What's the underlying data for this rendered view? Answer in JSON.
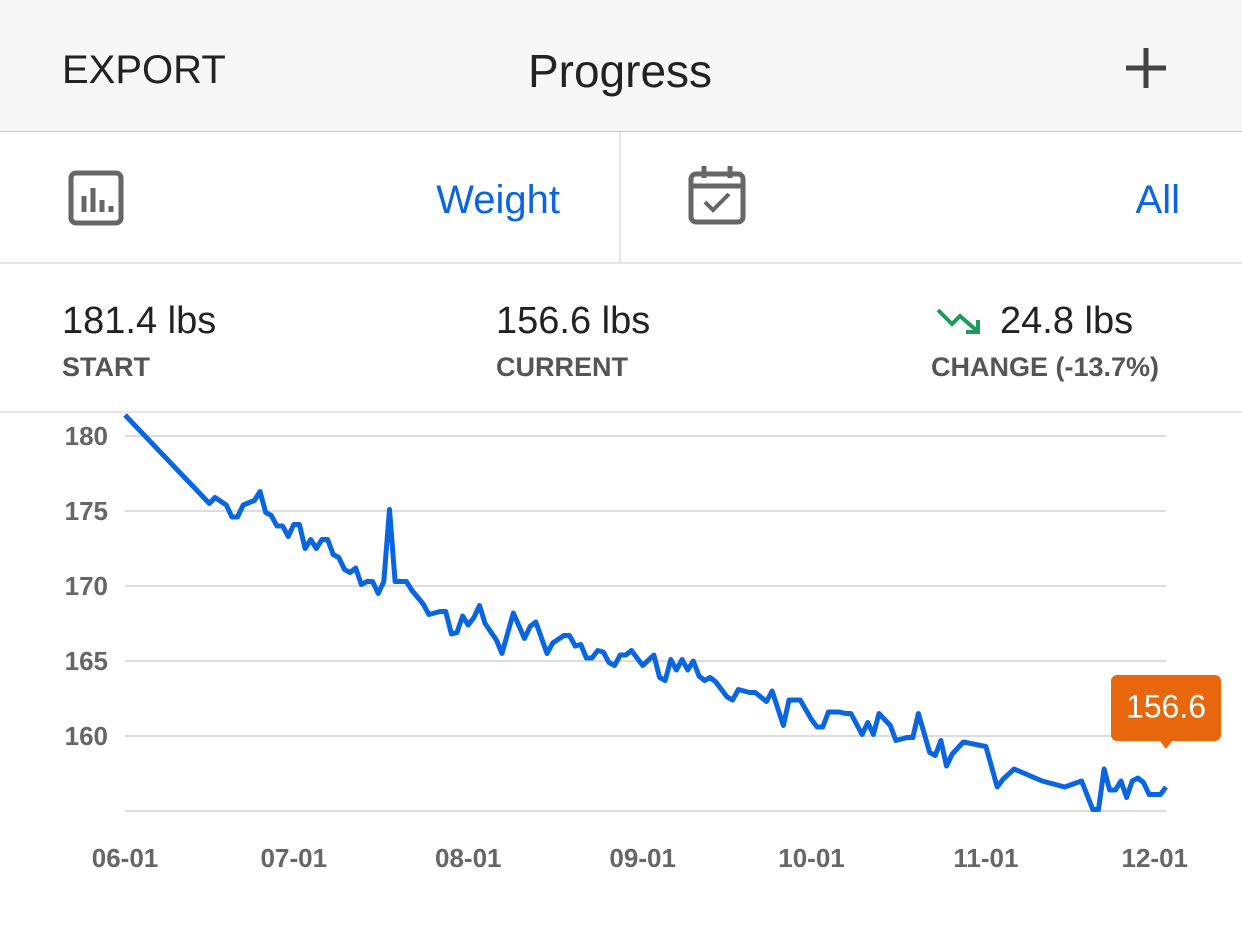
{
  "header": {
    "left_button": "EXPORT",
    "title": "Progress"
  },
  "selectors": {
    "metric": "Weight",
    "range": "All"
  },
  "stats": [
    {
      "value": "181.4 lbs",
      "label": "START"
    },
    {
      "value": "156.6 lbs",
      "label": "CURRENT"
    },
    {
      "value": "24.8 lbs",
      "label": "CHANGE (-13.7%)"
    }
  ],
  "chart_data": {
    "type": "line",
    "x": [
      "06-01",
      "06-16",
      "06-17",
      "06-19",
      "06-20",
      "06-21",
      "06-22",
      "06-24",
      "06-25",
      "06-26",
      "06-27",
      "06-28",
      "06-29",
      "06-30",
      "07-01",
      "07-02",
      "07-03",
      "07-04",
      "07-05",
      "07-06",
      "07-07",
      "07-08",
      "07-09",
      "07-10",
      "07-11",
      "07-12",
      "07-13",
      "07-14",
      "07-15",
      "07-16",
      "07-17",
      "07-18",
      "07-19",
      "07-21",
      "07-22",
      "07-24",
      "07-25",
      "07-27",
      "07-28",
      "07-29",
      "07-30",
      "07-31",
      "08-01",
      "08-02",
      "08-03",
      "08-04",
      "08-06",
      "08-07",
      "08-09",
      "08-11",
      "08-12",
      "08-13",
      "08-15",
      "08-16",
      "08-18",
      "08-19",
      "08-20",
      "08-21",
      "08-22",
      "08-23",
      "08-24",
      "08-25",
      "08-26",
      "08-27",
      "08-28",
      "08-29",
      "08-30",
      "09-01",
      "09-03",
      "09-04",
      "09-05",
      "09-06",
      "09-07",
      "09-08",
      "09-09",
      "09-10",
      "09-11",
      "09-12",
      "09-13",
      "09-14",
      "09-16",
      "09-17",
      "09-18",
      "09-20",
      "09-21",
      "09-23",
      "09-24",
      "09-26",
      "09-27",
      "09-29",
      "10-01",
      "10-02",
      "10-03",
      "10-04",
      "10-06",
      "10-07",
      "10-08",
      "10-10",
      "10-11",
      "10-12",
      "10-13",
      "10-15",
      "10-16",
      "10-18",
      "10-19",
      "10-20",
      "10-22",
      "10-23",
      "10-24",
      "10-25",
      "10-26",
      "10-28",
      "11-01",
      "11-03",
      "11-04",
      "11-06",
      "11-11",
      "11-15",
      "11-18",
      "11-20",
      "11-21",
      "11-22",
      "11-23",
      "11-24",
      "11-25",
      "11-26",
      "11-27",
      "11-28",
      "11-29",
      "11-30",
      "12-02",
      "12-03"
    ],
    "series": [
      {
        "name": "Weight",
        "color": "#0a66e0",
        "values": [
          181.4,
          175.5,
          175.9,
          175.4,
          174.6,
          174.6,
          175.4,
          175.7,
          176.3,
          174.9,
          174.7,
          174.0,
          174.0,
          173.3,
          174.1,
          174.1,
          172.5,
          173.1,
          172.5,
          173.1,
          173.1,
          172.1,
          171.9,
          171.1,
          170.9,
          171.2,
          170.1,
          170.3,
          170.3,
          169.5,
          170.3,
          175.1,
          170.3,
          170.3,
          169.7,
          168.8,
          168.1,
          168.3,
          168.3,
          166.8,
          166.9,
          168.0,
          167.4,
          167.9,
          168.7,
          167.5,
          166.4,
          165.5,
          168.2,
          166.5,
          167.3,
          167.6,
          165.5,
          166.2,
          166.7,
          166.7,
          166.0,
          166.1,
          165.2,
          165.2,
          165.7,
          165.6,
          164.9,
          164.7,
          165.4,
          165.4,
          165.7,
          164.7,
          165.4,
          163.9,
          163.7,
          165.1,
          164.4,
          165.1,
          164.4,
          165.0,
          164.0,
          163.7,
          163.9,
          163.6,
          162.6,
          162.4,
          163.1,
          162.9,
          162.9,
          162.3,
          163.0,
          160.7,
          162.4,
          162.4,
          161.1,
          160.6,
          160.6,
          161.6,
          161.6,
          161.5,
          161.5,
          160.1,
          160.9,
          160.1,
          161.5,
          160.7,
          159.7,
          159.9,
          159.9,
          161.5,
          158.9,
          158.7,
          159.7,
          158.0,
          158.8,
          159.6,
          159.3,
          156.6,
          157.1,
          157.8,
          157.0,
          156.6,
          157.0,
          155.1,
          155.1,
          157.8,
          156.4,
          156.4,
          157.0,
          155.9,
          157.0,
          157.2,
          156.9,
          156.1,
          156.1,
          156.6
        ]
      }
    ],
    "xlim": [
      "06-01",
      "12-03"
    ],
    "xticks": [
      "06-01",
      "07-01",
      "08-01",
      "09-01",
      "10-01",
      "11-01",
      "12-01"
    ],
    "ylim": [
      155,
      182
    ],
    "yticks": [
      160,
      165,
      170,
      175,
      180
    ],
    "grid": true,
    "callout_color": "#e8670c"
  }
}
